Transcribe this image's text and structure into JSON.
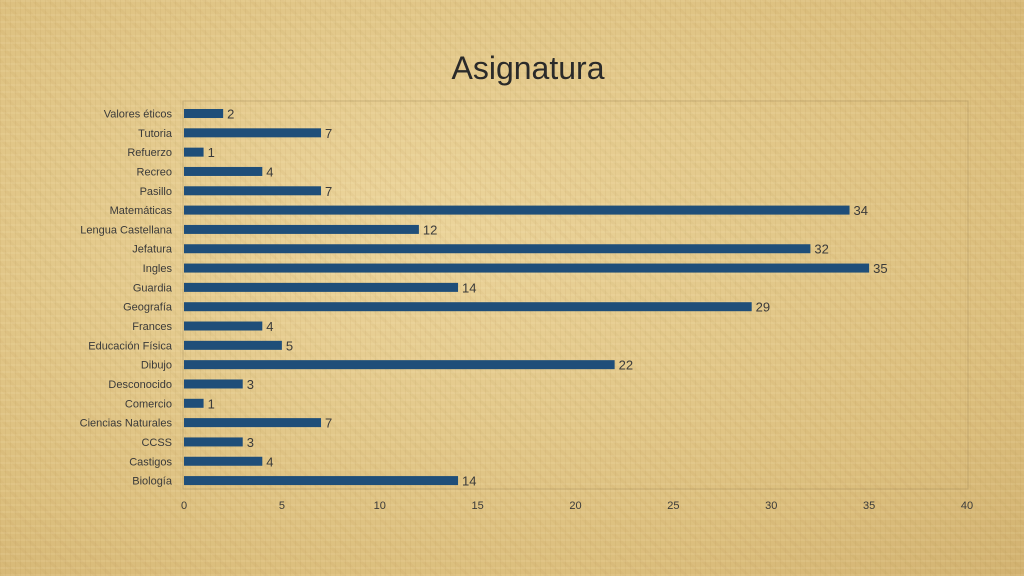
{
  "chart_data": {
    "type": "bar",
    "orientation": "horizontal",
    "title": "Asignatura",
    "xlabel": "",
    "ylabel": "",
    "xlim": [
      0,
      40
    ],
    "x_ticks": [
      0,
      5,
      10,
      15,
      20,
      25,
      30,
      35,
      40
    ],
    "grid": false,
    "legend": "none",
    "bar_color": "#1f4e79",
    "data_labels": true,
    "categories": [
      "Valores éticos",
      "Tutoria",
      "Refuerzo",
      "Recreo",
      "Pasillo",
      "Matemáticas",
      "Lengua Castellana",
      "Jefatura",
      "Ingles",
      "Guardia",
      "Geografía",
      "Frances",
      "Educación Física",
      "Dibujo",
      "Desconocido",
      "Comercio",
      "Ciencias Naturales",
      "CCSS",
      "Castigos",
      "Biología"
    ],
    "values": [
      2,
      7,
      1,
      4,
      7,
      34,
      12,
      32,
      35,
      14,
      29,
      4,
      5,
      22,
      3,
      1,
      7,
      3,
      4,
      14
    ]
  }
}
